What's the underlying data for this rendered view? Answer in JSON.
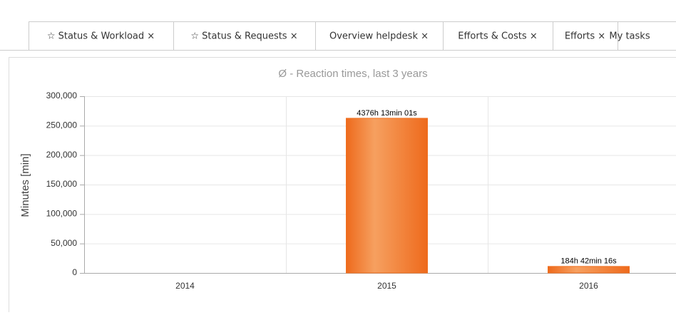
{
  "tabs": [
    "☆ Status & Workload ×",
    "☆ Status & Requests ×",
    "Overview helpdesk ×",
    "Efforts & Costs ×",
    "Efforts ×",
    "My tasks"
  ],
  "chart_data": {
    "type": "bar",
    "title": "Ø - Reaction times, last 3 years",
    "y_label": "Minutes [min]",
    "categories": [
      "2014",
      "2015",
      "2016"
    ],
    "values": [
      null,
      262573.02,
      11082.27
    ],
    "value_labels": [
      null,
      "4376h 13min 01s",
      "184h 42min 16s"
    ],
    "color": "#f07020",
    "ylim": [
      0,
      300000
    ],
    "yticks": [
      0,
      {
        "value": 50000,
        "label": "50,000"
      },
      {
        "value": 100000,
        "label": "100,000"
      },
      {
        "value": 150000,
        "label": "150,000"
      },
      {
        "value": 200000,
        "label": "200,000"
      },
      {
        "value": 250000,
        "label": "250,000"
      },
      {
        "value": 300000,
        "label": "300,000"
      }
    ],
    "grid": true
  }
}
